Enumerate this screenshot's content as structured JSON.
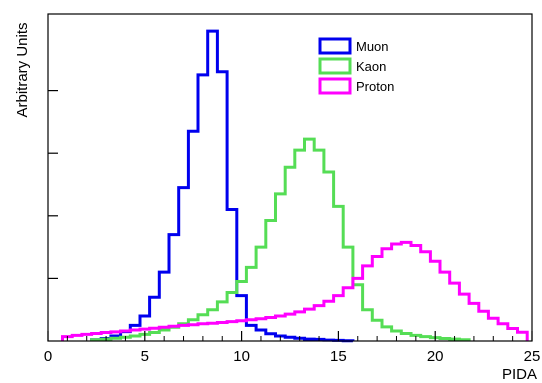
{
  "chart_data": {
    "type": "line",
    "title": "",
    "xlabel": "PIDA",
    "ylabel": "Arbitrary Units",
    "xlim": [
      0,
      25
    ],
    "ylim": [
      0,
      1
    ],
    "x_ticks": [
      "0",
      "5",
      "10",
      "15",
      "20",
      "25"
    ],
    "grid": false,
    "legend_position": "top-right",
    "bin_width": 0.5,
    "series": [
      {
        "name": "Muon",
        "color": "#0000ee",
        "x": [
          2.5,
          3,
          3.5,
          4,
          4.5,
          5,
          5.5,
          6,
          6.5,
          7,
          7.5,
          8,
          8.5,
          9,
          9.5,
          10,
          10.5,
          11,
          11.5,
          12,
          12.5,
          13,
          13.5,
          14,
          14.5,
          15,
          15.5
        ],
        "values": [
          0.004,
          0.008,
          0.016,
          0.03,
          0.05,
          0.08,
          0.14,
          0.22,
          0.34,
          0.49,
          0.67,
          0.85,
          0.99,
          0.86,
          0.42,
          0.145,
          0.05,
          0.035,
          0.023,
          0.016,
          0.012,
          0.009,
          0.006,
          0.005,
          0.003,
          0.002,
          0.001
        ]
      },
      {
        "name": "Kaon",
        "color": "#55dd55",
        "x": [
          2.5,
          3,
          3.5,
          4,
          4.5,
          5,
          5.5,
          6,
          6.5,
          7,
          7.5,
          8,
          8.5,
          9,
          9.5,
          10,
          10.5,
          11,
          11.5,
          12,
          12.5,
          13,
          13.5,
          14,
          14.5,
          15,
          15.5,
          16,
          16.5,
          17,
          17.5,
          18,
          18.5,
          19,
          19.5,
          20,
          20.5,
          21,
          21.5
        ],
        "values": [
          0.004,
          0.006,
          0.009,
          0.012,
          0.016,
          0.021,
          0.027,
          0.035,
          0.044,
          0.055,
          0.068,
          0.084,
          0.1,
          0.125,
          0.155,
          0.19,
          0.235,
          0.3,
          0.385,
          0.47,
          0.555,
          0.61,
          0.645,
          0.61,
          0.54,
          0.43,
          0.3,
          0.18,
          0.1,
          0.066,
          0.045,
          0.032,
          0.024,
          0.018,
          0.014,
          0.011,
          0.008,
          0.006,
          0.004
        ]
      },
      {
        "name": "Proton",
        "color": "#ff00ff",
        "x": [
          1,
          1.5,
          2,
          2.5,
          3,
          3.5,
          4,
          4.5,
          5,
          5.5,
          6,
          6.5,
          7,
          7.5,
          8,
          8.5,
          9,
          9.5,
          10,
          10.5,
          11,
          11.5,
          12,
          12.5,
          13,
          13.5,
          14,
          14.5,
          15,
          15.5,
          16,
          16.5,
          17,
          17.5,
          18,
          18.5,
          19,
          19.5,
          20,
          20.5,
          21,
          21.5,
          22,
          22.5,
          23,
          23.5,
          24,
          24.5
        ],
        "values": [
          0.014,
          0.018,
          0.021,
          0.024,
          0.027,
          0.029,
          0.032,
          0.035,
          0.038,
          0.041,
          0.044,
          0.047,
          0.05,
          0.052,
          0.055,
          0.057,
          0.059,
          0.062,
          0.065,
          0.068,
          0.071,
          0.075,
          0.08,
          0.086,
          0.093,
          0.102,
          0.113,
          0.127,
          0.145,
          0.17,
          0.2,
          0.24,
          0.27,
          0.295,
          0.31,
          0.315,
          0.305,
          0.285,
          0.255,
          0.22,
          0.185,
          0.15,
          0.12,
          0.095,
          0.073,
          0.055,
          0.04,
          0.028
        ]
      }
    ]
  }
}
